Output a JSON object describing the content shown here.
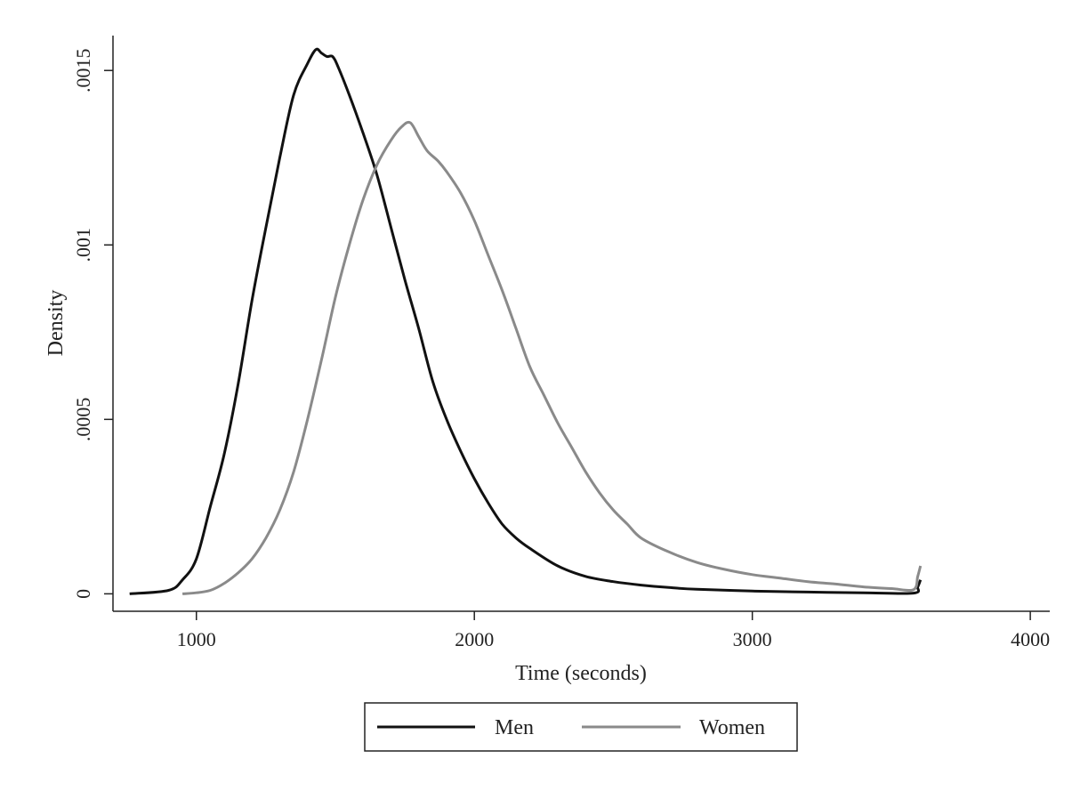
{
  "chart_data": {
    "type": "line",
    "title": "",
    "xlabel": "Time (seconds)",
    "ylabel": "Density",
    "xlim": [
      700,
      4070
    ],
    "ylim": [
      -5e-05,
      0.0016
    ],
    "xticks": [
      1000,
      2000,
      3000,
      4000
    ],
    "xtick_labels": [
      "1000",
      "2000",
      "3000",
      "4000"
    ],
    "yticks": [
      0,
      0.0005,
      0.001,
      0.0015
    ],
    "ytick_labels": [
      "0",
      ".0005",
      ".001",
      ".0015"
    ],
    "grid": false,
    "legend_position": "bottom",
    "series": [
      {
        "name": "Men",
        "color": "#111111",
        "points": [
          [
            760,
            0.0
          ],
          [
            900,
            1e-05
          ],
          [
            950,
            4e-05
          ],
          [
            1000,
            0.0001
          ],
          [
            1050,
            0.00025
          ],
          [
            1100,
            0.0004
          ],
          [
            1150,
            0.0006
          ],
          [
            1200,
            0.00084
          ],
          [
            1250,
            0.00105
          ],
          [
            1300,
            0.00125
          ],
          [
            1350,
            0.00143
          ],
          [
            1400,
            0.00152
          ],
          [
            1430,
            0.00156
          ],
          [
            1450,
            0.00155
          ],
          [
            1470,
            0.00154
          ],
          [
            1490,
            0.00154
          ],
          [
            1510,
            0.00151
          ],
          [
            1550,
            0.00143
          ],
          [
            1600,
            0.00132
          ],
          [
            1650,
            0.0012
          ],
          [
            1700,
            0.00105
          ],
          [
            1750,
            0.0009
          ],
          [
            1800,
            0.00076
          ],
          [
            1850,
            0.00061
          ],
          [
            1900,
            0.0005
          ],
          [
            1950,
            0.00041
          ],
          [
            2000,
            0.00033
          ],
          [
            2050,
            0.00026
          ],
          [
            2100,
            0.0002
          ],
          [
            2150,
            0.00016
          ],
          [
            2200,
            0.00013
          ],
          [
            2300,
            8e-05
          ],
          [
            2400,
            5e-05
          ],
          [
            2500,
            3.5e-05
          ],
          [
            2600,
            2.5e-05
          ],
          [
            2700,
            1.8e-05
          ],
          [
            2800,
            1.3e-05
          ],
          [
            3000,
            8e-06
          ],
          [
            3200,
            5e-06
          ],
          [
            3400,
            3e-06
          ],
          [
            3580,
            2e-06
          ],
          [
            3595,
            2e-05
          ],
          [
            3605,
            4e-05
          ]
        ]
      },
      {
        "name": "Women",
        "color": "#8a8a8a",
        "points": [
          [
            950,
            0.0
          ],
          [
            1000,
            3e-06
          ],
          [
            1050,
            1e-05
          ],
          [
            1100,
            3e-05
          ],
          [
            1150,
            6e-05
          ],
          [
            1200,
            0.0001
          ],
          [
            1250,
            0.00016
          ],
          [
            1300,
            0.00024
          ],
          [
            1350,
            0.00035
          ],
          [
            1400,
            0.0005
          ],
          [
            1450,
            0.00067
          ],
          [
            1500,
            0.00085
          ],
          [
            1550,
            0.001
          ],
          [
            1600,
            0.00113
          ],
          [
            1650,
            0.00123
          ],
          [
            1700,
            0.0013
          ],
          [
            1740,
            0.00134
          ],
          [
            1770,
            0.00135
          ],
          [
            1800,
            0.00131
          ],
          [
            1830,
            0.00127
          ],
          [
            1870,
            0.00124
          ],
          [
            1900,
            0.00121
          ],
          [
            1950,
            0.00115
          ],
          [
            2000,
            0.00107
          ],
          [
            2050,
            0.00097
          ],
          [
            2100,
            0.00087
          ],
          [
            2150,
            0.00076
          ],
          [
            2200,
            0.00065
          ],
          [
            2250,
            0.00057
          ],
          [
            2300,
            0.00049
          ],
          [
            2350,
            0.00042
          ],
          [
            2400,
            0.00035
          ],
          [
            2450,
            0.00029
          ],
          [
            2500,
            0.00024
          ],
          [
            2550,
            0.0002
          ],
          [
            2600,
            0.00016
          ],
          [
            2700,
            0.00012
          ],
          [
            2800,
            9e-05
          ],
          [
            2900,
            7e-05
          ],
          [
            3000,
            5.5e-05
          ],
          [
            3100,
            4.5e-05
          ],
          [
            3200,
            3.5e-05
          ],
          [
            3300,
            2.8e-05
          ],
          [
            3400,
            2e-05
          ],
          [
            3500,
            1.5e-05
          ],
          [
            3580,
            1.2e-05
          ],
          [
            3595,
            5e-05
          ],
          [
            3605,
            8e-05
          ]
        ]
      }
    ]
  }
}
